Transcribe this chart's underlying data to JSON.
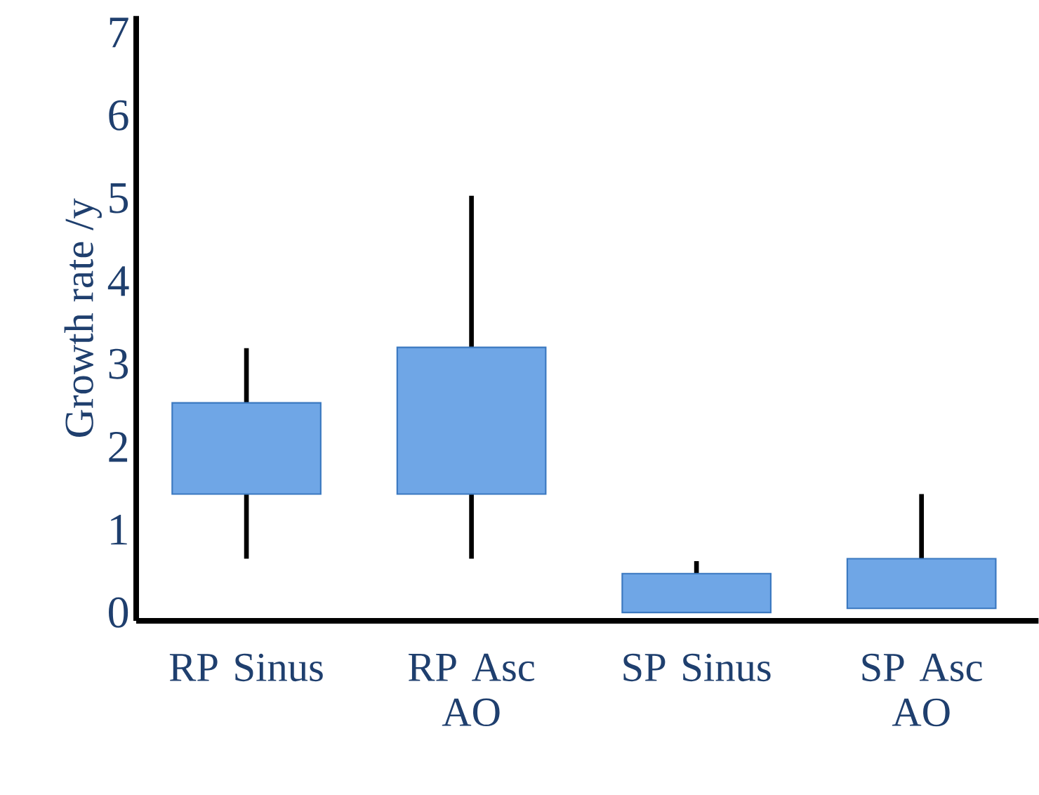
{
  "chart_data": {
    "type": "bar",
    "ylabel": "Growth rate /y",
    "categories": [
      "RP Sinus",
      "RP Asc AO",
      "SP Sinus",
      "SP Asc AO"
    ],
    "base": [
      1.43,
      1.43,
      0,
      0.05
    ],
    "values": [
      1.1,
      1.77,
      0.47,
      0.6
    ],
    "errors": [
      [
        0.65,
        3.19
      ],
      [
        0.65,
        5.03
      ],
      [
        0,
        0.62
      ],
      [
        0.05,
        1.43
      ]
    ],
    "color": "#6fa6e6",
    "ylim": [
      -0.1,
      7.2
    ],
    "yticks": [
      0,
      1,
      2,
      3,
      4,
      5,
      6,
      7
    ],
    "grid": false
  }
}
